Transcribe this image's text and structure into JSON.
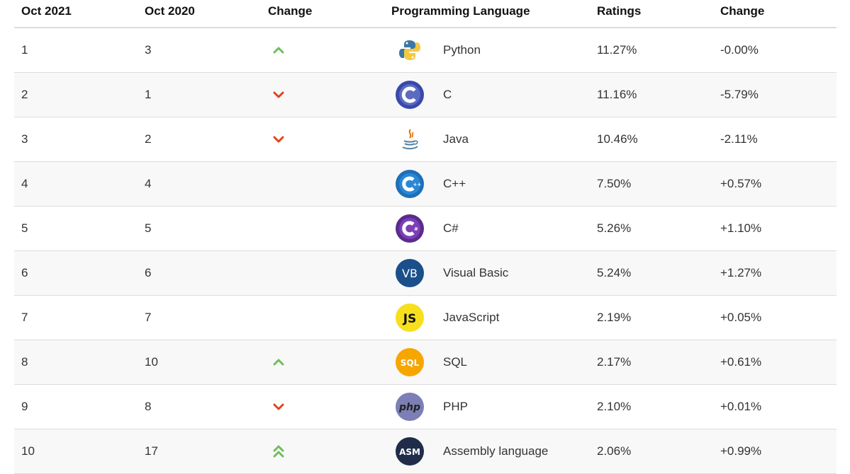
{
  "headers": {
    "oct2021": "Oct 2021",
    "oct2020": "Oct 2020",
    "change": "Change",
    "language": "Programming Language",
    "ratings": "Ratings",
    "change2": "Change"
  },
  "colors": {
    "up": "#6cbf5a",
    "down": "#e0441c"
  },
  "rows": [
    {
      "rank2021": "1",
      "rank2020": "3",
      "trend": "up",
      "logo": "python-icon",
      "language": "Python",
      "rating": "11.27%",
      "change": "-0.00%"
    },
    {
      "rank2021": "2",
      "rank2020": "1",
      "trend": "down",
      "logo": "c-icon",
      "language": "C",
      "rating": "11.16%",
      "change": "-5.79%"
    },
    {
      "rank2021": "3",
      "rank2020": "2",
      "trend": "down",
      "logo": "java-icon",
      "language": "Java",
      "rating": "10.46%",
      "change": "-2.11%"
    },
    {
      "rank2021": "4",
      "rank2020": "4",
      "trend": "none",
      "logo": "cpp-icon",
      "language": "C++",
      "rating": "7.50%",
      "change": "+0.57%"
    },
    {
      "rank2021": "5",
      "rank2020": "5",
      "trend": "none",
      "logo": "csharp-icon",
      "language": "C#",
      "rating": "5.26%",
      "change": "+1.10%"
    },
    {
      "rank2021": "6",
      "rank2020": "6",
      "trend": "none",
      "logo": "vb-icon",
      "language": "Visual Basic",
      "rating": "5.24%",
      "change": "+1.27%"
    },
    {
      "rank2021": "7",
      "rank2020": "7",
      "trend": "none",
      "logo": "javascript-icon",
      "language": "JavaScript",
      "rating": "2.19%",
      "change": "+0.05%"
    },
    {
      "rank2021": "8",
      "rank2020": "10",
      "trend": "up",
      "logo": "sql-icon",
      "language": "SQL",
      "rating": "2.17%",
      "change": "+0.61%"
    },
    {
      "rank2021": "9",
      "rank2020": "8",
      "trend": "down",
      "logo": "php-icon",
      "language": "PHP",
      "rating": "2.10%",
      "change": "+0.01%"
    },
    {
      "rank2021": "10",
      "rank2020": "17",
      "trend": "double-up",
      "logo": "assembly-icon",
      "language": "Assembly language",
      "rating": "2.06%",
      "change": "+0.99%"
    }
  ],
  "logo_text": {
    "vb": "VB",
    "js": "JS",
    "sql": "SQL",
    "php": "php",
    "asm": "ASM"
  }
}
